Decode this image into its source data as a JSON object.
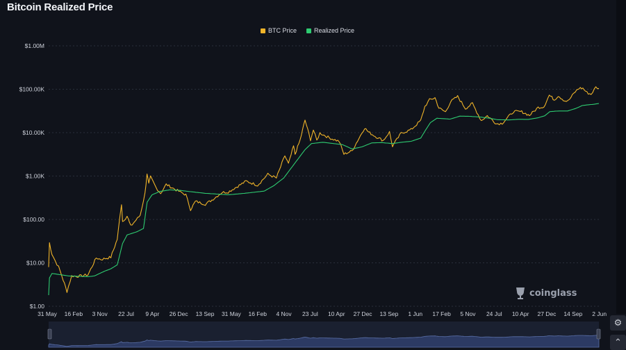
{
  "title": "Bitcoin Realized Price",
  "watermark": "coinglass",
  "colors": {
    "btc": "#f0b429",
    "realized": "#2ecc71",
    "navigator_fill": "#2c3a63"
  },
  "icons": {
    "watermark": "coinglass-logo-icon",
    "settings": "settings-icon",
    "up": "chevron-up-icon"
  },
  "chart_data": {
    "type": "line",
    "title": "Bitcoin Realized Price",
    "y_scale": "log",
    "ylim": [
      1,
      1000000
    ],
    "y_ticks": [
      "$1.00",
      "$10.00",
      "$100.00",
      "$1.00K",
      "$10.00K",
      "$100.00K",
      "$1.00M"
    ],
    "x_ticks": [
      "31 May",
      "16 Feb",
      "3 Nov",
      "22 Jul",
      "9 Apr",
      "26 Dec",
      "13 Sep",
      "31 May",
      "16 Feb",
      "4 Nov",
      "23 Jul",
      "10 Apr",
      "27 Dec",
      "13 Sep",
      "1 Jun",
      "17 Feb",
      "5 Nov",
      "24 Jul",
      "10 Apr",
      "27 Dec",
      "14 Sep",
      "2 Jun"
    ],
    "xlim": [
      "2011-05-31",
      "2025-06-20"
    ],
    "legend_position": "top-center",
    "series": [
      {
        "name": "BTC Price",
        "points": [
          [
            "2011-05-31",
            8
          ],
          [
            "2011-06-08",
            29
          ],
          [
            "2011-07-01",
            16
          ],
          [
            "2011-08-01",
            11
          ],
          [
            "2011-09-01",
            8
          ],
          [
            "2011-10-01",
            5
          ],
          [
            "2011-11-18",
            2.2
          ],
          [
            "2012-01-01",
            5
          ],
          [
            "2012-03-01",
            4.9
          ],
          [
            "2012-06-01",
            5.3
          ],
          [
            "2012-08-17",
            13
          ],
          [
            "2012-10-01",
            12
          ],
          [
            "2013-01-01",
            13.5
          ],
          [
            "2013-03-01",
            35
          ],
          [
            "2013-04-10",
            230
          ],
          [
            "2013-04-20",
            90
          ],
          [
            "2013-06-01",
            120
          ],
          [
            "2013-07-05",
            70
          ],
          [
            "2013-10-01",
            125
          ],
          [
            "2013-11-15",
            400
          ],
          [
            "2013-12-04",
            1150
          ],
          [
            "2013-12-20",
            650
          ],
          [
            "2014-01-06",
            950
          ],
          [
            "2014-02-25",
            550
          ],
          [
            "2014-04-10",
            400
          ],
          [
            "2014-06-01",
            640
          ],
          [
            "2014-09-01",
            480
          ],
          [
            "2014-12-01",
            370
          ],
          [
            "2015-01-14",
            170
          ],
          [
            "2015-03-01",
            260
          ],
          [
            "2015-06-01",
            225
          ],
          [
            "2015-08-01",
            280
          ],
          [
            "2015-11-04",
            420
          ],
          [
            "2016-01-01",
            430
          ],
          [
            "2016-06-16",
            760
          ],
          [
            "2016-10-01",
            615
          ],
          [
            "2017-01-04",
            1100
          ],
          [
            "2017-03-25",
            900
          ],
          [
            "2017-06-12",
            2950
          ],
          [
            "2017-07-16",
            1900
          ],
          [
            "2017-09-01",
            4900
          ],
          [
            "2017-09-15",
            3200
          ],
          [
            "2017-11-01",
            6700
          ],
          [
            "2017-12-17",
            19500
          ],
          [
            "2018-02-06",
            6900
          ],
          [
            "2018-03-05",
            11500
          ],
          [
            "2018-04-06",
            6600
          ],
          [
            "2018-05-05",
            9800
          ],
          [
            "2018-08-01",
            7600
          ],
          [
            "2018-11-01",
            6300
          ],
          [
            "2018-12-15",
            3200
          ],
          [
            "2019-03-01",
            3800
          ],
          [
            "2019-06-26",
            12900
          ],
          [
            "2019-08-01",
            10300
          ],
          [
            "2019-10-01",
            8300
          ],
          [
            "2019-12-17",
            6600
          ],
          [
            "2020-02-13",
            10300
          ],
          [
            "2020-03-12",
            4900
          ],
          [
            "2020-06-01",
            9700
          ],
          [
            "2020-09-01",
            11700
          ],
          [
            "2020-12-01",
            19000
          ],
          [
            "2021-01-08",
            40000
          ],
          [
            "2021-02-21",
            57000
          ],
          [
            "2021-04-13",
            63500
          ],
          [
            "2021-05-19",
            37000
          ],
          [
            "2021-07-20",
            30000
          ],
          [
            "2021-09-06",
            52000
          ],
          [
            "2021-11-10",
            68000
          ],
          [
            "2022-01-22",
            36000
          ],
          [
            "2022-03-28",
            47000
          ],
          [
            "2022-06-18",
            19000
          ],
          [
            "2022-08-14",
            24500
          ],
          [
            "2022-11-09",
            16000
          ],
          [
            "2022-12-31",
            16500
          ],
          [
            "2023-03-01",
            23500
          ],
          [
            "2023-04-14",
            30500
          ],
          [
            "2023-07-01",
            30300
          ],
          [
            "2023-09-11",
            25000
          ],
          [
            "2023-12-01",
            38000
          ],
          [
            "2024-01-23",
            39500
          ],
          [
            "2024-03-14",
            73000
          ],
          [
            "2024-05-01",
            57000
          ],
          [
            "2024-06-05",
            71000
          ],
          [
            "2024-08-05",
            54000
          ],
          [
            "2024-09-06",
            53500
          ],
          [
            "2024-11-12",
            88000
          ],
          [
            "2024-12-17",
            106000
          ],
          [
            "2025-01-21",
            105000
          ],
          [
            "2025-02-28",
            84000
          ],
          [
            "2025-04-08",
            76500
          ],
          [
            "2025-05-22",
            111000
          ],
          [
            "2025-06-20",
            104000
          ]
        ]
      },
      {
        "name": "Realized Price",
        "points": [
          [
            "2011-05-31",
            1.8
          ],
          [
            "2011-06-08",
            4.5
          ],
          [
            "2011-07-01",
            5.7
          ],
          [
            "2011-09-01",
            5.4
          ],
          [
            "2011-12-01",
            5.0
          ],
          [
            "2012-03-01",
            4.9
          ],
          [
            "2012-06-01",
            4.8
          ],
          [
            "2012-08-01",
            5.0
          ],
          [
            "2012-11-01",
            6.4
          ],
          [
            "2013-01-01",
            7.3
          ],
          [
            "2013-03-01",
            9
          ],
          [
            "2013-04-20",
            28
          ],
          [
            "2013-06-01",
            44
          ],
          [
            "2013-09-01",
            52
          ],
          [
            "2013-11-01",
            62
          ],
          [
            "2013-12-05",
            250
          ],
          [
            "2014-01-20",
            370
          ],
          [
            "2014-04-01",
            440
          ],
          [
            "2014-07-01",
            480
          ],
          [
            "2014-10-01",
            470
          ],
          [
            "2015-01-01",
            440
          ],
          [
            "2015-06-01",
            400
          ],
          [
            "2016-01-01",
            370
          ],
          [
            "2016-06-01",
            400
          ],
          [
            "2016-12-01",
            450
          ],
          [
            "2017-03-01",
            600
          ],
          [
            "2017-06-01",
            900
          ],
          [
            "2017-09-01",
            1800
          ],
          [
            "2017-12-15",
            4000
          ],
          [
            "2018-02-15",
            5600
          ],
          [
            "2018-06-01",
            6000
          ],
          [
            "2018-12-01",
            5300
          ],
          [
            "2019-03-01",
            4200
          ],
          [
            "2019-06-01",
            4700
          ],
          [
            "2019-09-01",
            5800
          ],
          [
            "2019-12-01",
            5900
          ],
          [
            "2020-03-15",
            5600
          ],
          [
            "2020-06-01",
            6000
          ],
          [
            "2020-09-01",
            6300
          ],
          [
            "2020-12-01",
            7500
          ],
          [
            "2021-01-15",
            11500
          ],
          [
            "2021-03-01",
            17000
          ],
          [
            "2021-05-01",
            21500
          ],
          [
            "2021-09-01",
            20500
          ],
          [
            "2021-12-01",
            24000
          ],
          [
            "2022-03-01",
            23800
          ],
          [
            "2022-06-15",
            22800
          ],
          [
            "2022-09-01",
            21500
          ],
          [
            "2022-11-15",
            19900
          ],
          [
            "2023-03-01",
            19600
          ],
          [
            "2023-06-01",
            20300
          ],
          [
            "2023-09-01",
            20200
          ],
          [
            "2023-12-01",
            22000
          ],
          [
            "2024-02-01",
            24500
          ],
          [
            "2024-03-20",
            30500
          ],
          [
            "2024-06-01",
            31500
          ],
          [
            "2024-09-01",
            31600
          ],
          [
            "2024-11-15",
            36000
          ],
          [
            "2025-01-15",
            42000
          ],
          [
            "2025-03-01",
            43500
          ],
          [
            "2025-05-01",
            45000
          ],
          [
            "2025-06-20",
            47000
          ]
        ]
      }
    ]
  }
}
